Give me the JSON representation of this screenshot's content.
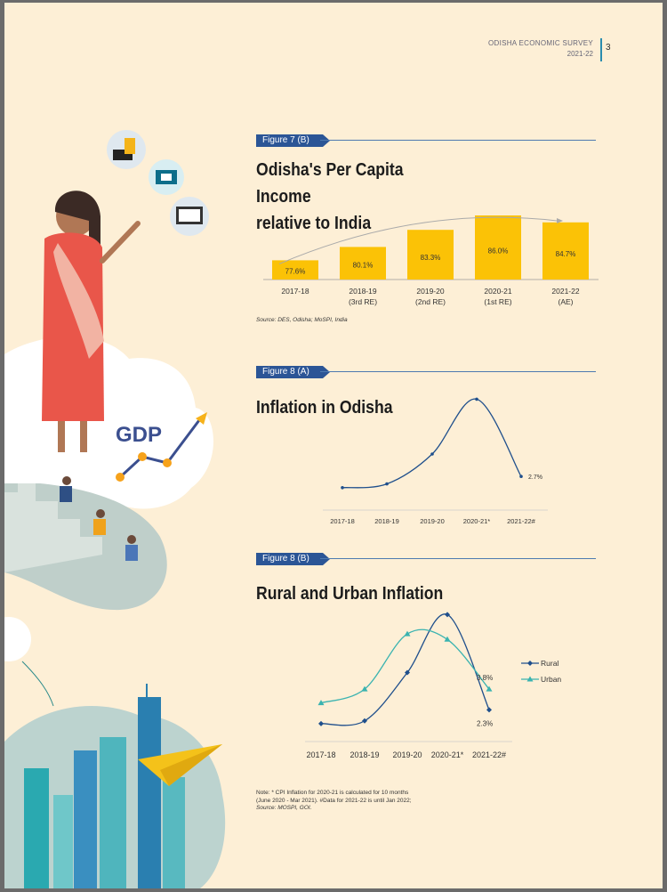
{
  "header": {
    "title": "ODISHA ECONOMIC SURVEY",
    "year": "2021-22",
    "page_number": "3"
  },
  "figures": [
    {
      "label": "Figure 7 (B)",
      "title_line1": "Odisha's Per Capita Income",
      "title_line2": "relative to India",
      "source": "Source: DES, Odisha; MoSPI, India"
    },
    {
      "label": "Figure 8 (A)",
      "title": "Inflation in Odisha"
    },
    {
      "label": "Figure 8 (B)",
      "title": "Rural and Urban Inflation"
    }
  ],
  "note": {
    "line1": "Note: * CPI Inflation for 2020-21 is calculated for 10 months",
    "line2": "(June 2020 - Mar 2021). #Data for 2021-22 is until Jan 2022;",
    "line3": "Source: MOSPI, GOI."
  },
  "colors": {
    "bar": "#fbc206",
    "line_dark": "#1f4f8c",
    "line_teal": "#3ab3b0",
    "label_bg": "#2b5596"
  },
  "chart_data": [
    {
      "type": "bar",
      "title": "Odisha's Per Capita Income relative to India",
      "categories": [
        [
          "2017-18"
        ],
        [
          "2018-19",
          "(3rd RE)"
        ],
        [
          "2019-20",
          "(2nd RE)"
        ],
        [
          "2020-21",
          "(1st RE)"
        ],
        [
          "2021-22",
          "(AE)"
        ]
      ],
      "values": [
        77.6,
        80.1,
        83.3,
        86.0,
        84.7
      ],
      "value_labels": [
        "77.6%",
        "80.1%",
        "83.3%",
        "86.0%",
        "84.7%"
      ],
      "ylim": [
        74,
        87
      ],
      "trend_arrow": true
    },
    {
      "type": "line",
      "title": "Inflation in Odisha",
      "categories": [
        "2017-18",
        "2018-19",
        "2019-20",
        "2020-21*",
        "2021-22#"
      ],
      "values": [
        1.8,
        2.1,
        4.5,
        8.9,
        2.7
      ],
      "point_labels": [
        "",
        "",
        "",
        "",
        "2.7%"
      ],
      "ylim": [
        0,
        10
      ]
    },
    {
      "type": "line",
      "title": "Rural and Urban Inflation",
      "categories": [
        "2017-18",
        "2018-19",
        "2019-20",
        "2020-21*",
        "2021-22#"
      ],
      "ylim": [
        0,
        10
      ],
      "series": [
        {
          "name": "Rural",
          "values": [
            1.3,
            1.5,
            5.0,
            9.2,
            2.3
          ],
          "end_label": "2.3%"
        },
        {
          "name": "Urban",
          "values": [
            2.8,
            3.8,
            7.8,
            7.4,
            3.8
          ],
          "end_label": "3.8%"
        }
      ],
      "legend": "right"
    }
  ]
}
